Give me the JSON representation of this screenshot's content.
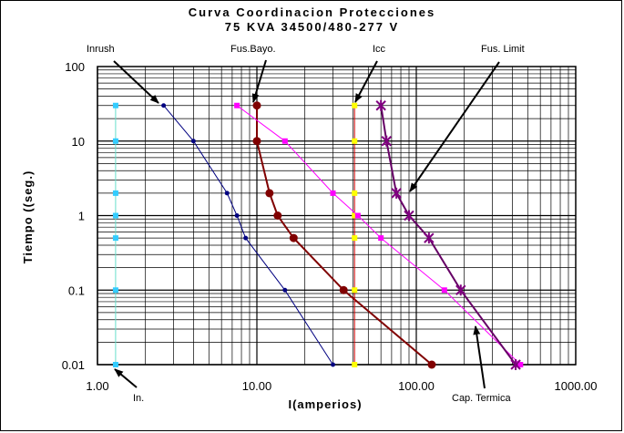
{
  "chart_data": {
    "type": "line",
    "title": "Curva Coordinacion Protecciones",
    "subtitle": "75 KVA 34500/480-277 V",
    "xlabel": "I(amperios)",
    "ylabel": "Tiempo ((seg.)",
    "x_scale": "log",
    "y_scale": "log",
    "xlim": [
      1,
      1000
    ],
    "ylim": [
      0.01,
      100
    ],
    "grid": true,
    "x_tick_labels": [
      "1.00",
      "10.00",
      "100.00",
      "1000.00"
    ],
    "y_tick_labels": [
      "0.01",
      "0.1",
      "1",
      "10",
      "100"
    ],
    "series": [
      {
        "name": "In.",
        "color": "#66e0cc",
        "marker_color": "#33ccff",
        "marker": "square",
        "points": [
          [
            1.3,
            0.01
          ],
          [
            1.3,
            0.1
          ],
          [
            1.3,
            0.5
          ],
          [
            1.3,
            1
          ],
          [
            1.3,
            2
          ],
          [
            1.3,
            10
          ],
          [
            1.3,
            30
          ]
        ]
      },
      {
        "name": "Inrush",
        "color": "#000080",
        "marker_color": "#000080",
        "marker": "circle",
        "points": [
          [
            2.6,
            30
          ],
          [
            4,
            10
          ],
          [
            6.5,
            2
          ],
          [
            7.5,
            1
          ],
          [
            8.5,
            0.5
          ],
          [
            15,
            0.1
          ],
          [
            30,
            0.01
          ]
        ]
      },
      {
        "name": "Fus.Bayo.",
        "color": "#800000",
        "marker_color": "#800000",
        "marker": "circle",
        "points": [
          [
            10,
            30
          ],
          [
            10,
            10
          ],
          [
            12,
            2
          ],
          [
            13.5,
            1
          ],
          [
            17,
            0.5
          ],
          [
            35,
            0.1
          ],
          [
            125,
            0.01
          ]
        ]
      },
      {
        "name": "Icc",
        "color": "#cc0000",
        "marker_color": "#ffff00",
        "marker": "square",
        "points": [
          [
            41,
            0.01
          ],
          [
            41,
            0.1
          ],
          [
            41,
            0.5
          ],
          [
            41,
            1
          ],
          [
            41,
            2
          ],
          [
            41,
            10
          ],
          [
            41,
            30
          ]
        ]
      },
      {
        "name": "Cap. Termica",
        "color": "#ff00ff",
        "marker_color": "#ff00ff",
        "marker": "square",
        "points": [
          [
            7.5,
            30
          ],
          [
            15,
            10
          ],
          [
            30,
            2
          ],
          [
            43,
            1
          ],
          [
            60,
            0.5
          ],
          [
            150,
            0.1
          ],
          [
            450,
            0.01
          ]
        ]
      },
      {
        "name": "Fus. Limit",
        "color": "#660066",
        "marker_color": "#800080",
        "marker": "star",
        "points": [
          [
            60,
            30
          ],
          [
            65,
            10
          ],
          [
            75,
            2
          ],
          [
            90,
            1
          ],
          [
            120,
            0.5
          ],
          [
            190,
            0.1
          ],
          [
            420,
            0.01
          ]
        ]
      }
    ],
    "annotations": [
      "Inrush",
      "Fus.Bayo.",
      "Icc",
      "Fus. Limit",
      "In.",
      "Cap. Termica"
    ]
  }
}
